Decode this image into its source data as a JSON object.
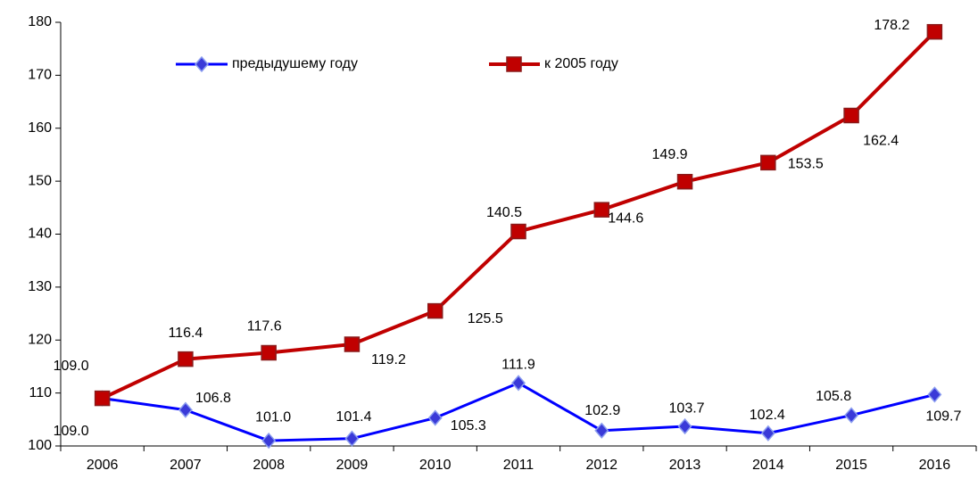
{
  "chart_data": {
    "type": "line",
    "categories": [
      "2006",
      "2007",
      "2008",
      "2009",
      "2010",
      "2011",
      "2012",
      "2013",
      "2014",
      "2015",
      "2016"
    ],
    "series": [
      {
        "name": "предыдушему году",
        "color": "#0000ff",
        "values": [
          109.0,
          106.8,
          101.0,
          101.4,
          105.3,
          111.9,
          102.9,
          103.7,
          102.4,
          105.8,
          109.7
        ],
        "value_labels": [
          "109.0",
          "106.8",
          "101.0",
          "101.4",
          "105.3",
          "111.9",
          "102.9",
          "103.7",
          "102.4",
          "105.8",
          "109.7"
        ]
      },
      {
        "name": "к 2005 году",
        "color": "#c00000",
        "values": [
          109.0,
          116.4,
          117.6,
          119.2,
          125.5,
          140.5,
          144.6,
          149.9,
          153.5,
          162.4,
          178.2
        ],
        "value_labels": [
          "109.0",
          "116.4",
          "117.6",
          "119.2",
          "125.5",
          "140.5",
          "144.6",
          "149.9",
          "153.5",
          "162.4",
          "178.2"
        ]
      }
    ],
    "ylim": [
      100,
      180
    ],
    "yticks": [
      100,
      110,
      120,
      130,
      140,
      150,
      160,
      170,
      180
    ],
    "grid": false
  }
}
